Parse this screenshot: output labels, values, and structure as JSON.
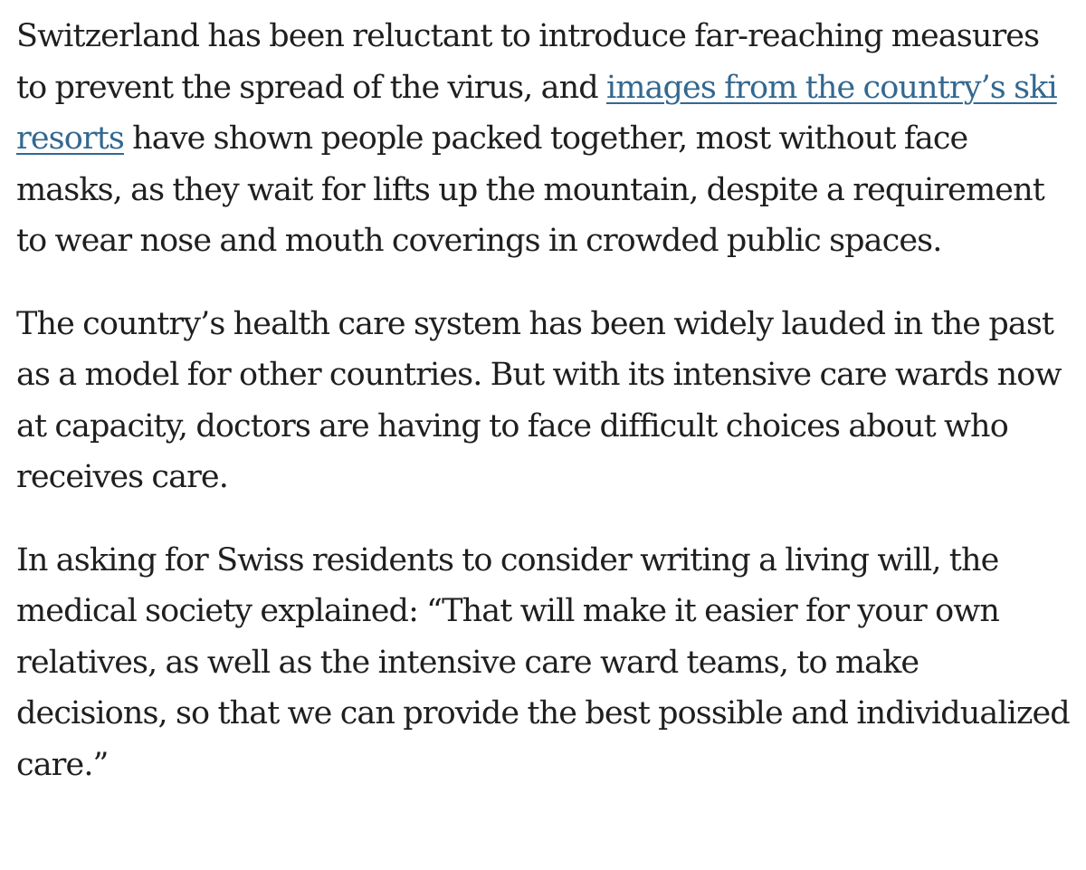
{
  "article": {
    "paragraphs": [
      {
        "before_link": "Switzerland has been reluctant to introduce far-reaching measures to prevent the spread of the virus, and ",
        "link_text": "images from the country’s ski resorts",
        "after_link": " have shown people packed together, most without face masks, as they wait for lifts up the mountain, despite a requirement to wear nose and mouth coverings in crowded public spaces."
      },
      {
        "text": "The country’s health care system has been widely lauded in the past as a model for other countries. But with its intensive care wards now at capacity, doctors are having to face difficult choices about who receives care."
      },
      {
        "text": "In asking for Swiss residents to consider writing a living will, the medical society explained: “That will make it easier for your own relatives, as well as the intensive care ward teams, to make decisions, so that we can provide the best possible and individualized care.”"
      }
    ]
  },
  "colors": {
    "text": "#1f1f1f",
    "link": "#326891",
    "background": "#ffffff"
  }
}
